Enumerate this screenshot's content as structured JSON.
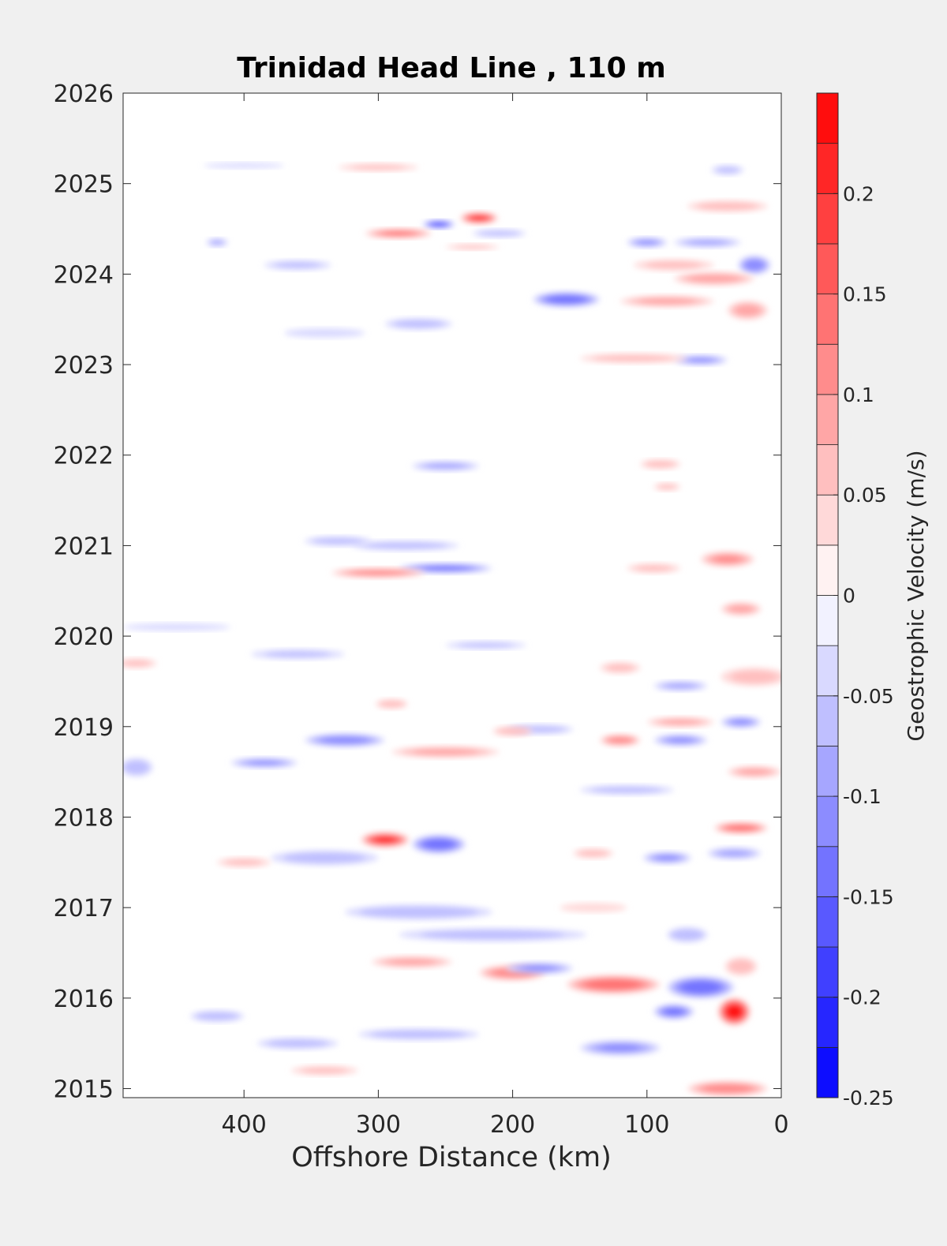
{
  "chart_data": {
    "type": "heatmap",
    "title": "Trinidad Head Line , 110 m",
    "xlabel": "Offshore Distance (km)",
    "ylabel": "",
    "xlim": [
      490,
      0
    ],
    "x_reversed": true,
    "ylim": [
      2014.9,
      2026
    ],
    "x_ticks": [
      {
        "value": 400,
        "label": "400"
      },
      {
        "value": 300,
        "label": "300"
      },
      {
        "value": 200,
        "label": "200"
      },
      {
        "value": 100,
        "label": "100"
      },
      {
        "value": 0,
        "label": "0"
      }
    ],
    "y_ticks": [
      {
        "value": 2015,
        "label": "2015"
      },
      {
        "value": 2016,
        "label": "2016"
      },
      {
        "value": 2017,
        "label": "2017"
      },
      {
        "value": 2018,
        "label": "2018"
      },
      {
        "value": 2019,
        "label": "2019"
      },
      {
        "value": 2020,
        "label": "2020"
      },
      {
        "value": 2021,
        "label": "2021"
      },
      {
        "value": 2022,
        "label": "2022"
      },
      {
        "value": 2023,
        "label": "2023"
      },
      {
        "value": 2024,
        "label": "2024"
      },
      {
        "value": 2025,
        "label": "2025"
      },
      {
        "value": 2026,
        "label": "2026"
      }
    ],
    "colorbar": {
      "label": "Geostrophic Velocity (m/s)",
      "range": [
        -0.25,
        0.25
      ],
      "levels": [
        -0.25,
        -0.225,
        -0.2,
        -0.175,
        -0.15,
        -0.125,
        -0.1,
        -0.075,
        -0.05,
        -0.025,
        0,
        0.025,
        0.05,
        0.075,
        0.1,
        0.125,
        0.15,
        0.175,
        0.2,
        0.225,
        0.25
      ],
      "ticks": [
        {
          "value": 0.2,
          "label": "0.2"
        },
        {
          "value": 0.15,
          "label": "0.15"
        },
        {
          "value": 0.1,
          "label": "0.1"
        },
        {
          "value": 0.05,
          "label": "0.05"
        },
        {
          "value": 0,
          "label": "0"
        },
        {
          "value": -0.05,
          "label": "-0.05"
        },
        {
          "value": -0.1,
          "label": "-0.1"
        },
        {
          "value": -0.15,
          "label": "-0.15"
        },
        {
          "value": -0.2,
          "label": "-0.2"
        },
        {
          "value": -0.25,
          "label": "-0.25"
        }
      ],
      "negative_color": "#0000ff",
      "positive_color": "#ff0000",
      "neutral_color": "#ffffff"
    },
    "grid": false,
    "features": [
      {
        "x": 35,
        "y": 2015.85,
        "rx": 12,
        "ry": 0.15,
        "v": 0.24
      },
      {
        "x": 60,
        "y": 2016.12,
        "rx": 25,
        "ry": 0.12,
        "v": -0.15
      },
      {
        "x": 30,
        "y": 2016.35,
        "rx": 12,
        "ry": 0.1,
        "v": 0.06
      },
      {
        "x": 80,
        "y": 2015.85,
        "rx": 15,
        "ry": 0.08,
        "v": -0.13
      },
      {
        "x": 125,
        "y": 2016.15,
        "rx": 35,
        "ry": 0.1,
        "v": 0.15
      },
      {
        "x": 200,
        "y": 2016.28,
        "rx": 25,
        "ry": 0.08,
        "v": 0.12
      },
      {
        "x": 120,
        "y": 2015.45,
        "rx": 30,
        "ry": 0.08,
        "v": -0.1
      },
      {
        "x": 40,
        "y": 2015.0,
        "rx": 30,
        "ry": 0.08,
        "v": 0.12
      },
      {
        "x": 70,
        "y": 2016.7,
        "rx": 15,
        "ry": 0.08,
        "v": -0.07
      },
      {
        "x": 215,
        "y": 2016.7,
        "rx": 70,
        "ry": 0.07,
        "v": -0.06
      },
      {
        "x": 275,
        "y": 2016.4,
        "rx": 30,
        "ry": 0.06,
        "v": 0.08
      },
      {
        "x": 180,
        "y": 2016.33,
        "rx": 25,
        "ry": 0.06,
        "v": -0.1
      },
      {
        "x": 270,
        "y": 2016.95,
        "rx": 55,
        "ry": 0.08,
        "v": -0.07
      },
      {
        "x": 360,
        "y": 2015.5,
        "rx": 30,
        "ry": 0.06,
        "v": -0.06
      },
      {
        "x": 270,
        "y": 2015.6,
        "rx": 45,
        "ry": 0.06,
        "v": -0.07
      },
      {
        "x": 420,
        "y": 2015.8,
        "rx": 20,
        "ry": 0.06,
        "v": -0.07
      },
      {
        "x": 340,
        "y": 2015.2,
        "rx": 25,
        "ry": 0.05,
        "v": 0.05
      },
      {
        "x": 140,
        "y": 2017.0,
        "rx": 25,
        "ry": 0.05,
        "v": 0.04
      },
      {
        "x": 295,
        "y": 2017.75,
        "rx": 18,
        "ry": 0.08,
        "v": 0.2
      },
      {
        "x": 255,
        "y": 2017.7,
        "rx": 20,
        "ry": 0.1,
        "v": -0.15
      },
      {
        "x": 30,
        "y": 2017.88,
        "rx": 20,
        "ry": 0.06,
        "v": 0.15
      },
      {
        "x": 85,
        "y": 2017.55,
        "rx": 18,
        "ry": 0.06,
        "v": -0.1
      },
      {
        "x": 35,
        "y": 2017.6,
        "rx": 20,
        "ry": 0.06,
        "v": -0.08
      },
      {
        "x": 140,
        "y": 2017.6,
        "rx": 15,
        "ry": 0.05,
        "v": 0.06
      },
      {
        "x": 340,
        "y": 2017.55,
        "rx": 40,
        "ry": 0.08,
        "v": -0.06
      },
      {
        "x": 400,
        "y": 2017.5,
        "rx": 20,
        "ry": 0.05,
        "v": 0.05
      },
      {
        "x": 325,
        "y": 2018.85,
        "rx": 30,
        "ry": 0.07,
        "v": -0.12
      },
      {
        "x": 385,
        "y": 2018.6,
        "rx": 25,
        "ry": 0.05,
        "v": -0.1
      },
      {
        "x": 250,
        "y": 2018.72,
        "rx": 40,
        "ry": 0.06,
        "v": 0.08
      },
      {
        "x": 120,
        "y": 2018.85,
        "rx": 15,
        "ry": 0.06,
        "v": 0.12
      },
      {
        "x": 75,
        "y": 2018.85,
        "rx": 20,
        "ry": 0.06,
        "v": -0.1
      },
      {
        "x": 30,
        "y": 2019.05,
        "rx": 15,
        "ry": 0.06,
        "v": -0.1
      },
      {
        "x": 20,
        "y": 2018.5,
        "rx": 20,
        "ry": 0.06,
        "v": 0.08
      },
      {
        "x": 180,
        "y": 2018.97,
        "rx": 25,
        "ry": 0.05,
        "v": -0.07
      },
      {
        "x": 115,
        "y": 2018.3,
        "rx": 35,
        "ry": 0.05,
        "v": -0.06
      },
      {
        "x": 200,
        "y": 2018.95,
        "rx": 15,
        "ry": 0.05,
        "v": 0.07
      },
      {
        "x": 290,
        "y": 2019.25,
        "rx": 12,
        "ry": 0.05,
        "v": 0.07
      },
      {
        "x": 75,
        "y": 2019.45,
        "rx": 20,
        "ry": 0.05,
        "v": -0.08
      },
      {
        "x": 75,
        "y": 2019.05,
        "rx": 25,
        "ry": 0.05,
        "v": 0.08
      },
      {
        "x": 20,
        "y": 2019.55,
        "rx": 25,
        "ry": 0.1,
        "v": 0.05
      },
      {
        "x": 30,
        "y": 2020.3,
        "rx": 15,
        "ry": 0.07,
        "v": 0.08
      },
      {
        "x": 220,
        "y": 2019.9,
        "rx": 30,
        "ry": 0.04,
        "v": -0.05
      },
      {
        "x": 360,
        "y": 2019.8,
        "rx": 35,
        "ry": 0.05,
        "v": -0.05
      },
      {
        "x": 450,
        "y": 2020.1,
        "rx": 40,
        "ry": 0.04,
        "v": -0.04
      },
      {
        "x": 480,
        "y": 2019.7,
        "rx": 15,
        "ry": 0.05,
        "v": 0.05
      },
      {
        "x": 480,
        "y": 2018.55,
        "rx": 12,
        "ry": 0.1,
        "v": -0.06
      },
      {
        "x": 120,
        "y": 2019.65,
        "rx": 15,
        "ry": 0.06,
        "v": 0.05
      },
      {
        "x": 250,
        "y": 2020.75,
        "rx": 35,
        "ry": 0.05,
        "v": -0.14
      },
      {
        "x": 300,
        "y": 2020.7,
        "rx": 35,
        "ry": 0.05,
        "v": 0.12
      },
      {
        "x": 280,
        "y": 2021.0,
        "rx": 40,
        "ry": 0.05,
        "v": -0.07
      },
      {
        "x": 330,
        "y": 2021.05,
        "rx": 25,
        "ry": 0.05,
        "v": -0.06
      },
      {
        "x": 40,
        "y": 2020.85,
        "rx": 20,
        "ry": 0.08,
        "v": 0.1
      },
      {
        "x": 95,
        "y": 2020.75,
        "rx": 20,
        "ry": 0.05,
        "v": 0.05
      },
      {
        "x": 250,
        "y": 2021.88,
        "rx": 25,
        "ry": 0.05,
        "v": -0.08
      },
      {
        "x": 90,
        "y": 2021.9,
        "rx": 15,
        "ry": 0.05,
        "v": 0.06
      },
      {
        "x": 85,
        "y": 2021.65,
        "rx": 10,
        "ry": 0.04,
        "v": 0.05
      },
      {
        "x": 255,
        "y": 2024.55,
        "rx": 12,
        "ry": 0.04,
        "v": -0.2
      },
      {
        "x": 225,
        "y": 2024.62,
        "rx": 14,
        "ry": 0.06,
        "v": 0.2
      },
      {
        "x": 285,
        "y": 2024.45,
        "rx": 25,
        "ry": 0.05,
        "v": 0.13
      },
      {
        "x": 210,
        "y": 2024.45,
        "rx": 20,
        "ry": 0.04,
        "v": -0.07
      },
      {
        "x": 160,
        "y": 2023.72,
        "rx": 25,
        "ry": 0.08,
        "v": -0.15
      },
      {
        "x": 100,
        "y": 2024.35,
        "rx": 15,
        "ry": 0.05,
        "v": -0.1
      },
      {
        "x": 20,
        "y": 2024.1,
        "rx": 12,
        "ry": 0.1,
        "v": -0.12
      },
      {
        "x": 55,
        "y": 2024.35,
        "rx": 25,
        "ry": 0.05,
        "v": -0.08
      },
      {
        "x": 50,
        "y": 2023.95,
        "rx": 30,
        "ry": 0.07,
        "v": 0.09
      },
      {
        "x": 85,
        "y": 2023.7,
        "rx": 35,
        "ry": 0.06,
        "v": 0.08
      },
      {
        "x": 25,
        "y": 2023.6,
        "rx": 15,
        "ry": 0.1,
        "v": 0.08
      },
      {
        "x": 80,
        "y": 2024.1,
        "rx": 30,
        "ry": 0.06,
        "v": 0.05
      },
      {
        "x": 60,
        "y": 2023.05,
        "rx": 20,
        "ry": 0.05,
        "v": -0.1
      },
      {
        "x": 110,
        "y": 2023.07,
        "rx": 40,
        "ry": 0.05,
        "v": 0.06
      },
      {
        "x": 40,
        "y": 2024.75,
        "rx": 30,
        "ry": 0.06,
        "v": 0.06
      },
      {
        "x": 270,
        "y": 2023.45,
        "rx": 25,
        "ry": 0.06,
        "v": -0.06
      },
      {
        "x": 360,
        "y": 2024.1,
        "rx": 25,
        "ry": 0.05,
        "v": -0.05
      },
      {
        "x": 230,
        "y": 2024.3,
        "rx": 20,
        "ry": 0.03,
        "v": 0.05
      },
      {
        "x": 340,
        "y": 2023.35,
        "rx": 30,
        "ry": 0.05,
        "v": -0.04
      },
      {
        "x": 300,
        "y": 2025.18,
        "rx": 30,
        "ry": 0.04,
        "v": 0.05
      },
      {
        "x": 400,
        "y": 2025.2,
        "rx": 30,
        "ry": 0.03,
        "v": -0.04
      },
      {
        "x": 40,
        "y": 2025.15,
        "rx": 12,
        "ry": 0.05,
        "v": -0.05
      },
      {
        "x": 420,
        "y": 2024.35,
        "rx": 8,
        "ry": 0.04,
        "v": -0.08
      }
    ]
  }
}
